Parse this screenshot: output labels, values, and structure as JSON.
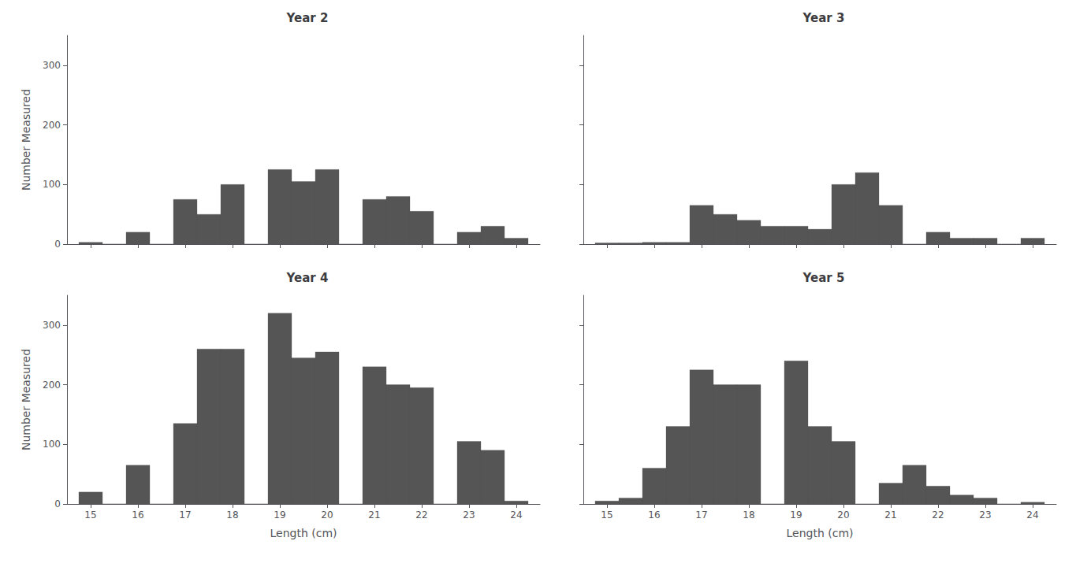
{
  "chart_data": [
    {
      "type": "bar",
      "title": "Year 2",
      "ylabel": "Number Measured",
      "x": [
        15.0,
        15.5,
        16.0,
        16.5,
        17.0,
        17.5,
        18.0,
        18.5,
        19.0,
        19.5,
        20.0,
        20.5,
        21.0,
        21.5,
        22.0,
        22.5,
        23.0,
        23.5,
        24.0
      ],
      "values": [
        3,
        0,
        20,
        0,
        75,
        50,
        100,
        0,
        125,
        105,
        125,
        0,
        75,
        80,
        55,
        0,
        20,
        30,
        10
      ],
      "color": "#555555",
      "xlim": [
        14.5,
        24.5
      ],
      "ylim": [
        0,
        350
      ],
      "xticks": [
        15,
        16,
        17,
        18,
        19,
        20,
        21,
        22,
        23,
        24
      ],
      "yticks": [
        0,
        100,
        200,
        300
      ],
      "grid": false,
      "tick_labels": "y"
    },
    {
      "type": "bar",
      "title": "Year 3",
      "x": [
        15.0,
        15.5,
        16.0,
        16.5,
        17.0,
        17.5,
        18.0,
        18.5,
        19.0,
        19.5,
        20.0,
        20.5,
        21.0,
        21.5,
        22.0,
        22.5,
        23.0,
        23.5,
        24.0
      ],
      "values": [
        2,
        2,
        3,
        3,
        65,
        50,
        40,
        30,
        30,
        25,
        100,
        120,
        65,
        0,
        20,
        10,
        10,
        0,
        10
      ],
      "color": "#555555",
      "xlim": [
        14.5,
        24.5
      ],
      "ylim": [
        0,
        350
      ],
      "xticks": [
        15,
        16,
        17,
        18,
        19,
        20,
        21,
        22,
        23,
        24
      ],
      "yticks": [
        0,
        100,
        200,
        300
      ],
      "grid": false,
      "tick_labels": false
    },
    {
      "type": "bar",
      "title": "Year 4",
      "xlabel": "Length (cm)",
      "ylabel": "Number Measured",
      "x": [
        15.0,
        15.5,
        16.0,
        16.5,
        17.0,
        17.5,
        18.0,
        18.5,
        19.0,
        19.5,
        20.0,
        20.5,
        21.0,
        21.5,
        22.0,
        22.5,
        23.0,
        23.5,
        24.0
      ],
      "values": [
        20,
        0,
        65,
        0,
        135,
        260,
        260,
        0,
        320,
        245,
        255,
        0,
        230,
        200,
        195,
        0,
        105,
        90,
        5
      ],
      "color": "#555555",
      "xlim": [
        14.5,
        24.5
      ],
      "ylim": [
        0,
        350
      ],
      "xticks": [
        15,
        16,
        17,
        18,
        19,
        20,
        21,
        22,
        23,
        24
      ],
      "yticks": [
        0,
        100,
        200,
        300
      ],
      "grid": false
    },
    {
      "type": "bar",
      "title": "Year 5",
      "xlabel": "Length (cm)",
      "x": [
        15.0,
        15.5,
        16.0,
        16.5,
        17.0,
        17.5,
        18.0,
        18.5,
        19.0,
        19.5,
        20.0,
        20.5,
        21.0,
        21.5,
        22.0,
        22.5,
        23.0,
        23.5,
        24.0
      ],
      "values": [
        5,
        10,
        60,
        130,
        225,
        200,
        200,
        0,
        240,
        130,
        105,
        0,
        35,
        65,
        30,
        15,
        10,
        0,
        3
      ],
      "color": "#555555",
      "xlim": [
        14.5,
        24.5
      ],
      "ylim": [
        0,
        350
      ],
      "xticks": [
        15,
        16,
        17,
        18,
        19,
        20,
        21,
        22,
        23,
        24
      ],
      "yticks": [
        0,
        100,
        200,
        300
      ],
      "grid": false,
      "tick_labels": "x"
    }
  ]
}
